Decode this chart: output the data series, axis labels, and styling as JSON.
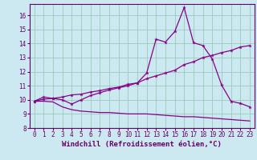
{
  "xlabel": "Windchill (Refroidissement éolien,°C)",
  "bg_color": "#cce8f0",
  "line_color": "#880088",
  "grid_color": "#99ccbb",
  "xlim": [
    -0.5,
    23.5
  ],
  "ylim": [
    8,
    16.8
  ],
  "yticks": [
    8,
    9,
    10,
    11,
    12,
    13,
    14,
    15,
    16
  ],
  "xticks": [
    0,
    1,
    2,
    3,
    4,
    5,
    6,
    7,
    8,
    9,
    10,
    11,
    12,
    13,
    14,
    15,
    16,
    17,
    18,
    19,
    20,
    21,
    22,
    23
  ],
  "line1_x": [
    0,
    1,
    2,
    3,
    4,
    5,
    6,
    7,
    8,
    9,
    10,
    11,
    12,
    13,
    14,
    15,
    16,
    17,
    18,
    19,
    20,
    21,
    22,
    23
  ],
  "line1_y": [
    9.9,
    10.2,
    10.1,
    10.0,
    9.7,
    10.0,
    10.3,
    10.5,
    10.7,
    10.85,
    11.0,
    11.2,
    11.9,
    14.3,
    14.1,
    14.85,
    16.55,
    14.05,
    13.85,
    12.9,
    11.05,
    9.9,
    9.75,
    9.5
  ],
  "line2_x": [
    0,
    1,
    2,
    3,
    4,
    5,
    6,
    7,
    8,
    9,
    10,
    11,
    12,
    13,
    14,
    15,
    16,
    17,
    18,
    19,
    20,
    21,
    22,
    23
  ],
  "line2_y": [
    9.9,
    10.05,
    10.1,
    10.2,
    10.35,
    10.4,
    10.55,
    10.65,
    10.8,
    10.9,
    11.1,
    11.2,
    11.5,
    11.7,
    11.9,
    12.1,
    12.5,
    12.7,
    13.0,
    13.15,
    13.35,
    13.5,
    13.75,
    13.85
  ],
  "line3_x": [
    0,
    1,
    2,
    3,
    4,
    5,
    6,
    7,
    8,
    9,
    10,
    11,
    12,
    13,
    14,
    15,
    16,
    17,
    18,
    19,
    20,
    21,
    22,
    23
  ],
  "line3_y": [
    9.9,
    9.9,
    9.85,
    9.5,
    9.3,
    9.2,
    9.15,
    9.1,
    9.1,
    9.05,
    9.0,
    9.0,
    9.0,
    8.95,
    8.9,
    8.85,
    8.8,
    8.8,
    8.75,
    8.7,
    8.65,
    8.6,
    8.55,
    8.5
  ],
  "font_color": "#660066",
  "tick_fontsize": 5.5,
  "label_fontsize": 6.5
}
